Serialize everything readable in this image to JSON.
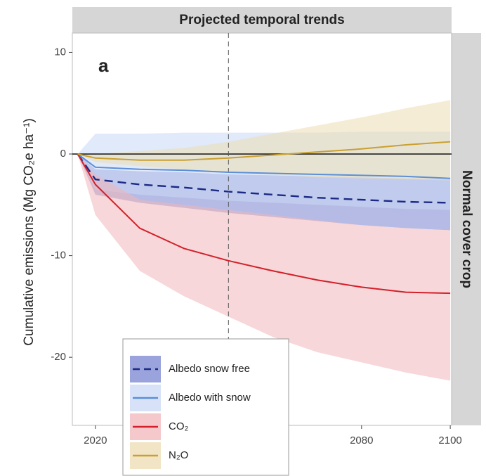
{
  "chart_data": {
    "type": "line",
    "title": "Projected temporal trends",
    "facet_label": "Normal cover crop",
    "panel_label": "a",
    "y_label": "Cumulative emissions (Mg CO₂e ha⁻¹)",
    "x": [
      2016,
      2020,
      2030,
      2040,
      2050,
      2060,
      2070,
      2080,
      2090,
      2100
    ],
    "xlim": [
      2014.8,
      2100.3
    ],
    "xticks": [
      2020,
      2080,
      2100
    ],
    "ylim": [
      -26.7,
      11.9
    ],
    "yticks": [
      10,
      0,
      -10,
      -20
    ],
    "hline": 0,
    "vline": 2050,
    "series": [
      {
        "name": "Albedo snow free",
        "color": "#1c2a86",
        "band_color": "#7884cf",
        "dash": true,
        "values": [
          0,
          -2.5,
          -3,
          -3.3,
          -3.7,
          -4,
          -4.3,
          -4.5,
          -4.7,
          -4.8
        ],
        "lower": [
          0,
          -4,
          -4.8,
          -5.3,
          -5.8,
          -6.2,
          -6.6,
          -7,
          -7.3,
          -7.5
        ],
        "upper": [
          0,
          -1.5,
          -1.7,
          -1.8,
          -2,
          -2.1,
          -2.2,
          -2.3,
          -2.4,
          -2.5
        ]
      },
      {
        "name": "Albedo with snow",
        "color": "#5b8fd6",
        "band_color": "#c9d8f5",
        "dash": false,
        "values": [
          0,
          -1.3,
          -1.5,
          -1.6,
          -1.8,
          -1.9,
          -2,
          -2.1,
          -2.2,
          -2.4
        ],
        "lower": [
          0,
          -3.5,
          -4,
          -4.3,
          -4.6,
          -4.8,
          -5,
          -5.2,
          -5.4,
          -5.5
        ],
        "upper": [
          0,
          2,
          2,
          2.1,
          2.1,
          2.1,
          2.1,
          2.2,
          2.2,
          2.2
        ]
      },
      {
        "name": "CO₂",
        "color": "#d3202a",
        "band_color": "#f1b6ba",
        "dash": false,
        "values": [
          0,
          -3,
          -7.3,
          -9.3,
          -10.5,
          -11.5,
          -12.4,
          -13.1,
          -13.6,
          -13.7
        ],
        "lower": [
          0,
          -6,
          -11.5,
          -14,
          -16,
          -18,
          -19.5,
          -20.5,
          -21.5,
          -22.3
        ],
        "upper": [
          0,
          -2,
          -4.5,
          -5,
          -5.5,
          -6,
          -6.5,
          -7,
          -7.3,
          -7.5
        ]
      },
      {
        "name": "N₂O",
        "color": "#c9a031",
        "band_color": "#eddcb3",
        "dash": false,
        "values": [
          0,
          -0.4,
          -0.6,
          -0.6,
          -0.4,
          -0.1,
          0.2,
          0.5,
          0.9,
          1.2
        ],
        "lower": [
          0,
          -0.8,
          -1.2,
          -1.5,
          -1.8,
          -2,
          -2.3,
          -2.4,
          -2.5,
          -2.6
        ],
        "upper": [
          0,
          0,
          0.3,
          0.6,
          1.2,
          2,
          2.8,
          3.6,
          4.5,
          5.3
        ]
      }
    ]
  }
}
